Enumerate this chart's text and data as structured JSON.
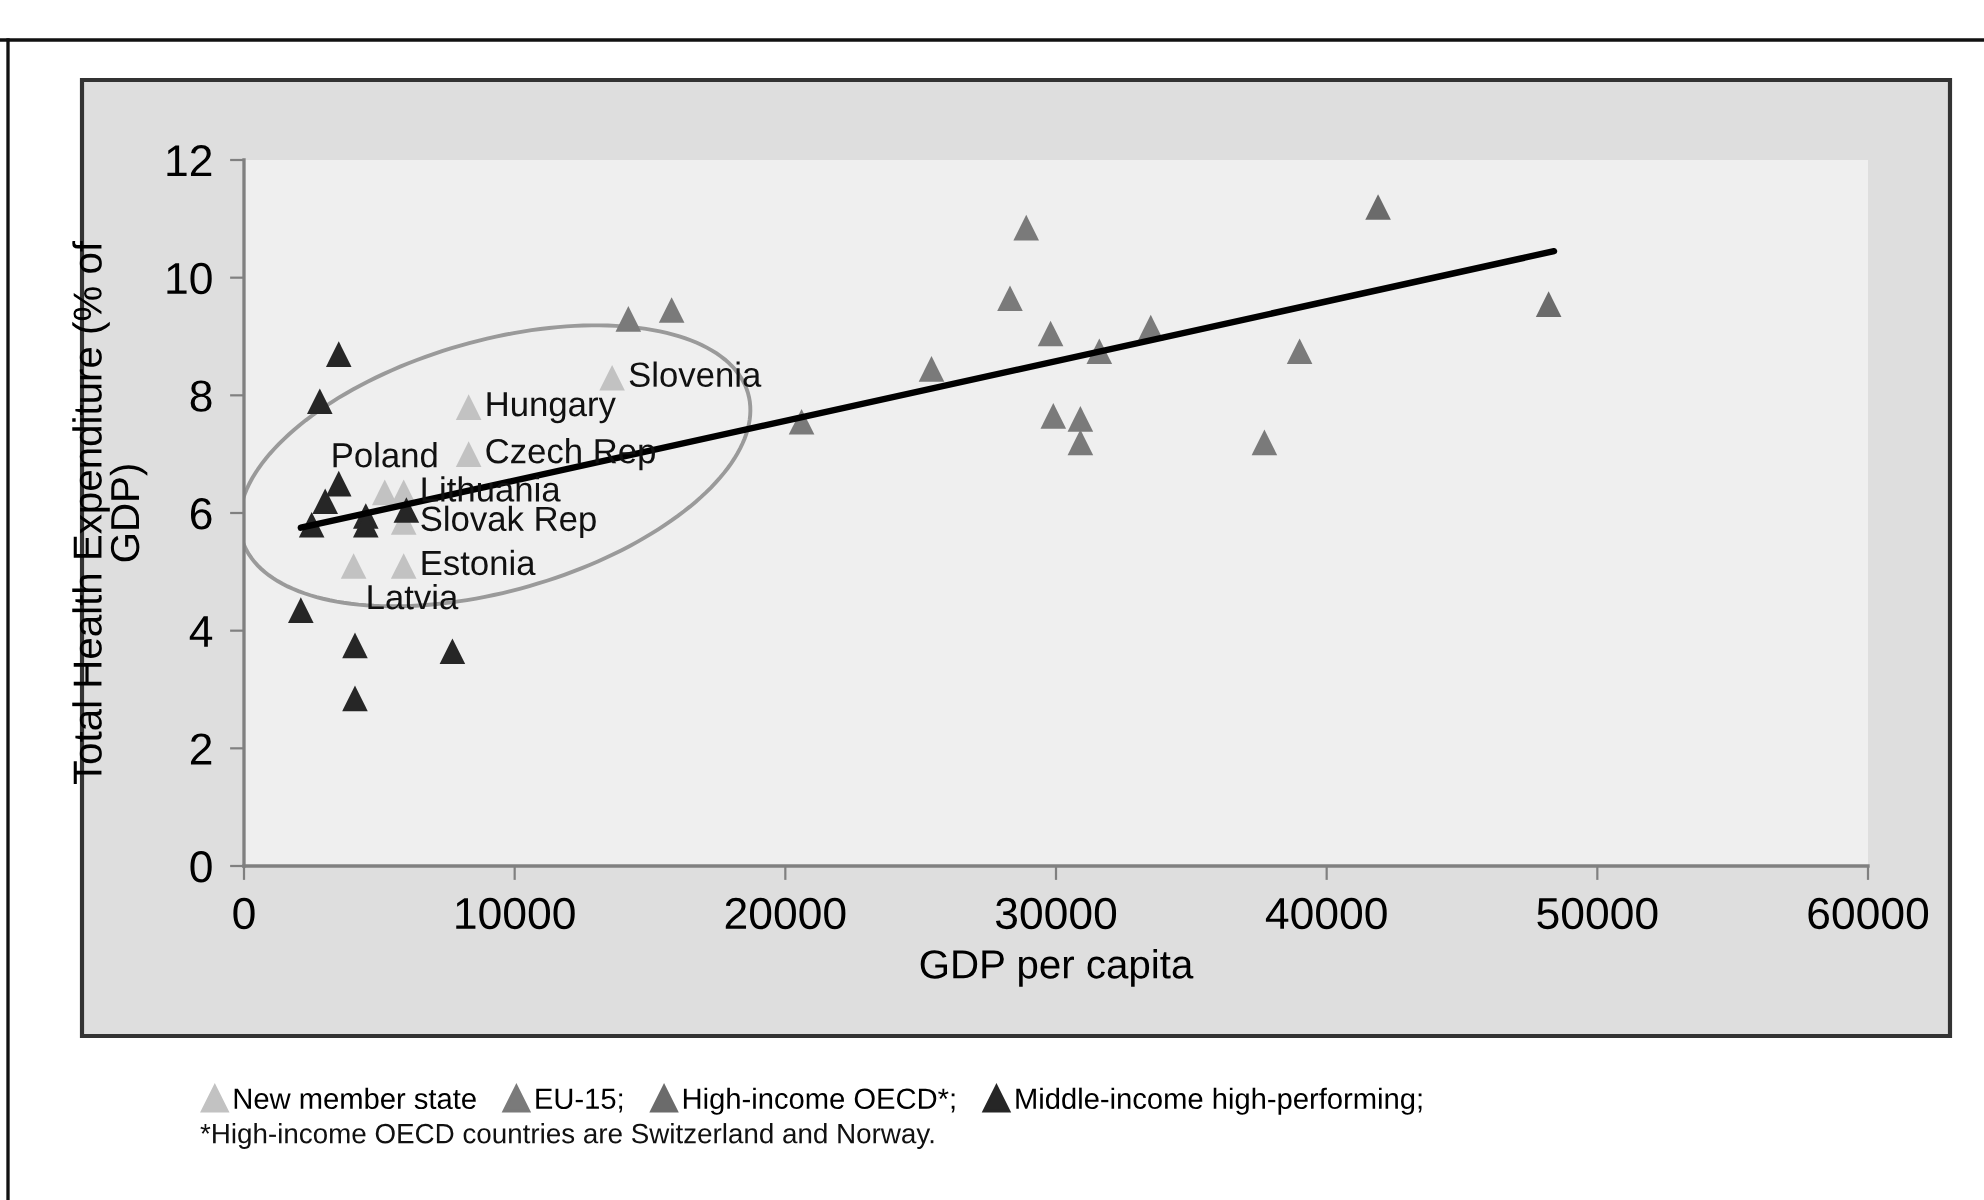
{
  "chart_data": {
    "type": "scatter",
    "xlabel": "GDP per capita",
    "ylabel": "Total Health Expenditure (% of GDP)",
    "xlim": [
      0,
      60000
    ],
    "xticks": [
      0,
      10000,
      20000,
      30000,
      40000,
      50000,
      60000
    ],
    "ylim": [
      0,
      12
    ],
    "yticks": [
      0,
      2,
      4,
      6,
      8,
      10,
      12
    ],
    "marker": "triangle",
    "legend": "bottom",
    "series": [
      {
        "name": "New member state",
        "color": "#c2c2c2",
        "x": [
          13600,
          8300,
          8300,
          5200,
          5900,
          5900,
          5900,
          4050
        ],
        "values": [
          8.3,
          7.8,
          7.0,
          6.35,
          6.35,
          5.85,
          5.1,
          5.1
        ]
      },
      {
        "name": "EU-15;",
        "color": "#7a7a7a",
        "x": [
          14200,
          15800,
          20600,
          25400,
          28300,
          28900,
          29800,
          29900,
          30900,
          30900,
          31600,
          33500,
          37700,
          39000
        ],
        "values": [
          9.3,
          9.45,
          7.55,
          8.45,
          9.65,
          10.85,
          9.05,
          7.65,
          7.6,
          7.2,
          8.75,
          9.15,
          7.2,
          8.75
        ]
      },
      {
        "name": "High-income OECD*;",
        "color": "#6b6b6b",
        "x": [
          41900,
          48200
        ],
        "values": [
          11.2,
          9.55
        ]
      },
      {
        "name": "Middle-income high-performing;",
        "color": "#262626",
        "x": [
          2800,
          3500,
          3500,
          3000,
          2500,
          4500,
          4500,
          6000,
          2100,
          4100,
          7700,
          4100
        ],
        "values": [
          7.9,
          8.7,
          6.5,
          6.2,
          5.8,
          5.95,
          5.8,
          6.05,
          4.35,
          3.75,
          3.65,
          2.85
        ]
      },
      {
        "type": "line",
        "marker": "none",
        "color": "#000000",
        "x": [
          2100,
          48400
        ],
        "values": [
          5.75,
          10.45
        ]
      }
    ],
    "annotations": [
      {
        "text": "Slovenia",
        "x": 13600,
        "y": 8.3
      },
      {
        "text": "Hungary",
        "x": 8300,
        "y": 7.8
      },
      {
        "text": "Czech Rep",
        "x": 8300,
        "y": 7.0
      },
      {
        "text": "Poland",
        "x": 5200,
        "y": 6.35
      },
      {
        "text": "Lithuania",
        "x": 5900,
        "y": 6.35
      },
      {
        "text": "Slovak Rep",
        "x": 5900,
        "y": 5.85
      },
      {
        "text": "Estonia",
        "x": 5900,
        "y": 5.1
      },
      {
        "text": "Latvia",
        "x": 4050,
        "y": 5.1
      },
      "*High-income OECD countries are Switzerland and Norway."
    ]
  }
}
